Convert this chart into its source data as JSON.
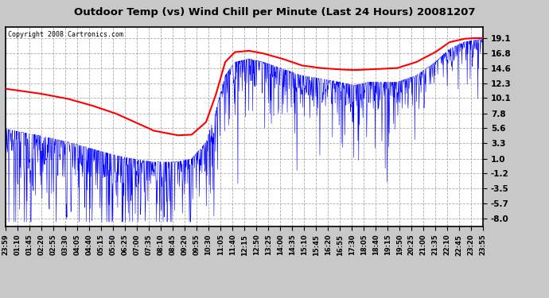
{
  "title": "Outdoor Temp (vs) Wind Chill per Minute (Last 24 Hours) 20081207",
  "copyright_text": "Copyright 2008 Cartronics.com",
  "yticks": [
    19.1,
    16.8,
    14.6,
    12.3,
    10.1,
    7.8,
    5.6,
    3.3,
    1.0,
    -1.2,
    -3.5,
    -5.7,
    -8.0
  ],
  "ylim": [
    -9.2,
    20.8
  ],
  "xtick_labels": [
    "23:59",
    "01:10",
    "01:45",
    "02:20",
    "02:55",
    "03:30",
    "04:05",
    "04:40",
    "05:15",
    "05:50",
    "06:25",
    "07:00",
    "07:35",
    "08:10",
    "08:45",
    "09:20",
    "09:55",
    "10:30",
    "11:05",
    "11:40",
    "12:15",
    "12:50",
    "13:25",
    "14:00",
    "14:35",
    "15:10",
    "15:45",
    "16:20",
    "16:55",
    "17:30",
    "18:05",
    "18:40",
    "19:15",
    "19:50",
    "20:25",
    "21:00",
    "21:35",
    "22:10",
    "22:45",
    "23:20",
    "23:55"
  ],
  "bg_color": "#c8c8c8",
  "plot_bg_color": "#ffffff",
  "grid_color": "#aaaaaa",
  "blue_line_color": "#0000ff",
  "red_line_color": "#ff0000",
  "title_color": "#000000",
  "copyright_color": "#000000",
  "red_key_x": [
    0.0,
    0.03,
    0.07,
    0.13,
    0.18,
    0.23,
    0.28,
    0.31,
    0.34,
    0.36,
    0.39,
    0.42,
    0.44,
    0.46,
    0.48,
    0.51,
    0.54,
    0.58,
    0.62,
    0.66,
    0.7,
    0.73,
    0.76,
    0.79,
    0.82,
    0.86,
    0.9,
    0.93,
    0.96,
    0.98,
    1.0
  ],
  "red_key_y": [
    11.5,
    11.2,
    10.8,
    10.0,
    9.0,
    7.8,
    6.2,
    5.2,
    4.8,
    4.5,
    4.6,
    6.5,
    10.5,
    15.5,
    17.0,
    17.2,
    16.8,
    16.0,
    15.0,
    14.6,
    14.4,
    14.3,
    14.4,
    14.5,
    14.6,
    15.5,
    17.0,
    18.5,
    19.0,
    19.1,
    19.1
  ],
  "blue_key_x": [
    0.0,
    0.03,
    0.07,
    0.13,
    0.18,
    0.23,
    0.28,
    0.31,
    0.34,
    0.36,
    0.39,
    0.42,
    0.44,
    0.46,
    0.48,
    0.51,
    0.54,
    0.58,
    0.62,
    0.66,
    0.7,
    0.73,
    0.76,
    0.79,
    0.82,
    0.86,
    0.9,
    0.93,
    0.96,
    0.98,
    1.0
  ],
  "blue_key_y": [
    5.5,
    5.0,
    4.5,
    3.5,
    2.5,
    1.5,
    0.8,
    0.5,
    0.5,
    0.5,
    1.0,
    3.5,
    8.0,
    13.5,
    15.5,
    16.0,
    15.5,
    14.5,
    13.5,
    13.0,
    12.5,
    12.0,
    12.5,
    12.5,
    12.5,
    13.5,
    15.5,
    17.5,
    18.5,
    18.8,
    19.0
  ]
}
